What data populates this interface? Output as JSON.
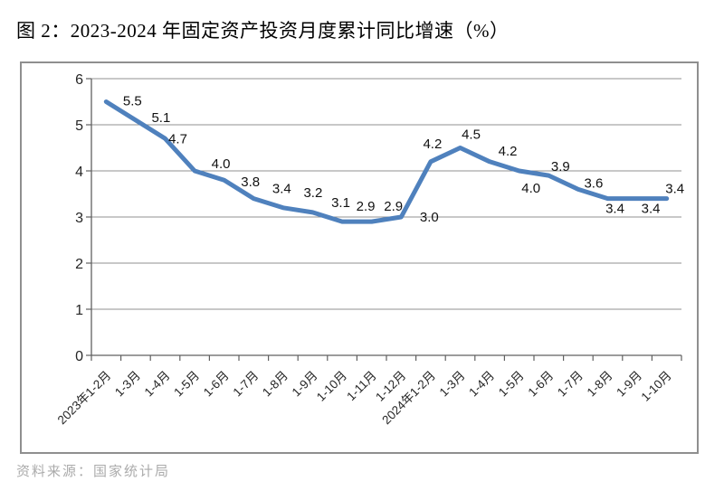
{
  "title": "图 2：2023-2024 年固定资产投资月度累计同比增速（%）",
  "source": "资料来源：国家统计局",
  "chart_data": {
    "type": "line",
    "categories": [
      "2023年1-2月",
      "1-3月",
      "1-4月",
      "1-5月",
      "1-6月",
      "1-7月",
      "1-8月",
      "1-9月",
      "1-10月",
      "1-11月",
      "1-12月",
      "2024年1-2月",
      "1-3月",
      "1-4月",
      "1-5月",
      "1-6月",
      "1-7月",
      "1-8月",
      "1-9月",
      "1-10月"
    ],
    "values": [
      5.5,
      5.1,
      4.7,
      4.0,
      3.8,
      3.4,
      3.2,
      3.1,
      2.9,
      2.9,
      3.0,
      4.2,
      4.5,
      4.2,
      4.0,
      3.9,
      3.6,
      3.4,
      3.4,
      3.4
    ],
    "title": "图 2：2023-2024 年固定资产投资月度累计同比增速（%）",
    "xlabel": "",
    "ylabel": "",
    "ylim": [
      0,
      6
    ],
    "ytick_interval": 1,
    "yticks": [
      0,
      1,
      2,
      3,
      4,
      5,
      6
    ],
    "grid": true,
    "legend": false,
    "data_labels": true,
    "colors": {
      "line": "#4F81BD",
      "grid": "#909090",
      "axis": "#606060",
      "tick_label": "#262626",
      "data_label": "#111111",
      "frame_border": "#8f8f8f",
      "title_text": "#000000",
      "source_text": "#ababab"
    }
  }
}
